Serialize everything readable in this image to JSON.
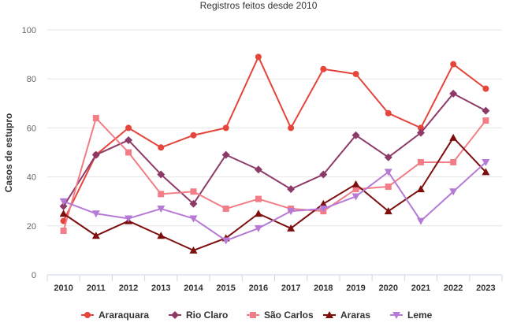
{
  "chart_data": {
    "type": "line",
    "title": "",
    "subtitle": "Registros feitos desde 2010",
    "xlabel": "",
    "ylabel": "Casos de estupro",
    "ylim": [
      0,
      100
    ],
    "yticks": [
      0,
      20,
      40,
      60,
      80,
      100
    ],
    "grid": true,
    "legend": "bottom",
    "x": [
      "2010",
      "2011",
      "2012",
      "2013",
      "2014",
      "2015",
      "2016",
      "2017",
      "2018",
      "2019",
      "2020",
      "2021",
      "2022",
      "2023"
    ],
    "series": [
      {
        "name": "Araraquara",
        "color": "#e5453b",
        "marker": "circle",
        "values": [
          22,
          49,
          60,
          52,
          57,
          60,
          89,
          60,
          84,
          82,
          66,
          60,
          86,
          76
        ]
      },
      {
        "name": "Rio Claro",
        "color": "#8e3a68",
        "marker": "diamond",
        "values": [
          28,
          49,
          55,
          41,
          29,
          49,
          43,
          35,
          41,
          57,
          48,
          58,
          74,
          67
        ]
      },
      {
        "name": "São Carlos",
        "color": "#f27d86",
        "marker": "square",
        "values": [
          18,
          64,
          50,
          33,
          34,
          27,
          31,
          27,
          26,
          35,
          36,
          46,
          46,
          63
        ]
      },
      {
        "name": "Araras",
        "color": "#7d0f0f",
        "marker": "triangle",
        "values": [
          25,
          16,
          22,
          16,
          10,
          15,
          25,
          19,
          29,
          37,
          26,
          35,
          56,
          42
        ]
      },
      {
        "name": "Leme",
        "color": "#b57ad6",
        "marker": "triangle-down",
        "values": [
          30,
          25,
          23,
          27,
          23,
          14,
          19,
          26,
          27,
          32,
          42,
          22,
          34,
          46
        ]
      }
    ]
  }
}
